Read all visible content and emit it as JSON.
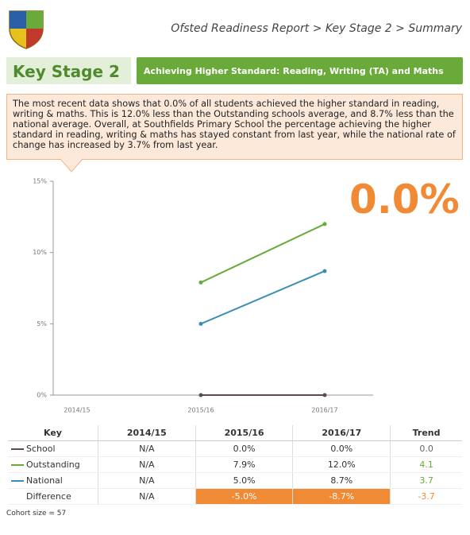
{
  "header": {
    "breadcrumb": "Ofsted Readiness Report > Key Stage 2 > Summary",
    "section": "Key Stage 2",
    "measure": "Achieving Higher Standard: Reading, Writing (TA) and Maths"
  },
  "summary": "The most recent data shows that 0.0% of all students achieved the higher standard in reading, writing & maths. This is 12.0% less than the Outstanding schools average, and 8.7% less than the national average. Overall, at Southfields Primary School the percentage achieving the higher standard in reading, writing & maths has stayed constant from last year, while the national rate of change has increased by 3.7% from last year.",
  "headline": "0.0%",
  "chart_data": {
    "type": "line",
    "categories": [
      "2014/15",
      "2015/16",
      "2016/17"
    ],
    "series": [
      {
        "name": "School",
        "color": "#5b4d4b",
        "values": [
          null,
          0,
          0
        ]
      },
      {
        "name": "Outstanding",
        "color": "#6aaa3a",
        "values": [
          null,
          7.9,
          12.0
        ]
      },
      {
        "name": "National",
        "color": "#3c8db4",
        "values": [
          null,
          5.0,
          8.7
        ]
      }
    ],
    "ylim": [
      0,
      15
    ],
    "yticks": [
      {
        "value": 0,
        "label": "0%"
      },
      {
        "value": 5,
        "label": "5%"
      },
      {
        "value": 10,
        "label": "10%"
      },
      {
        "value": 15,
        "label": "15%"
      }
    ]
  },
  "table": {
    "header": [
      "Key",
      "2014/15",
      "2015/16",
      "2016/17",
      "Trend"
    ],
    "rows": [
      [
        "School",
        "N/A",
        "0.0%",
        "0.0%",
        "0.0"
      ],
      [
        "Outstanding",
        "N/A",
        "7.9%",
        "12.0%",
        "4.1"
      ],
      [
        "National",
        "N/A",
        "5.0%",
        "8.7%",
        "3.7"
      ],
      [
        "Difference",
        "N/A",
        "-5.0%",
        "-8.7%",
        "-3.7"
      ]
    ]
  },
  "footnote": "Cohort size = 57"
}
